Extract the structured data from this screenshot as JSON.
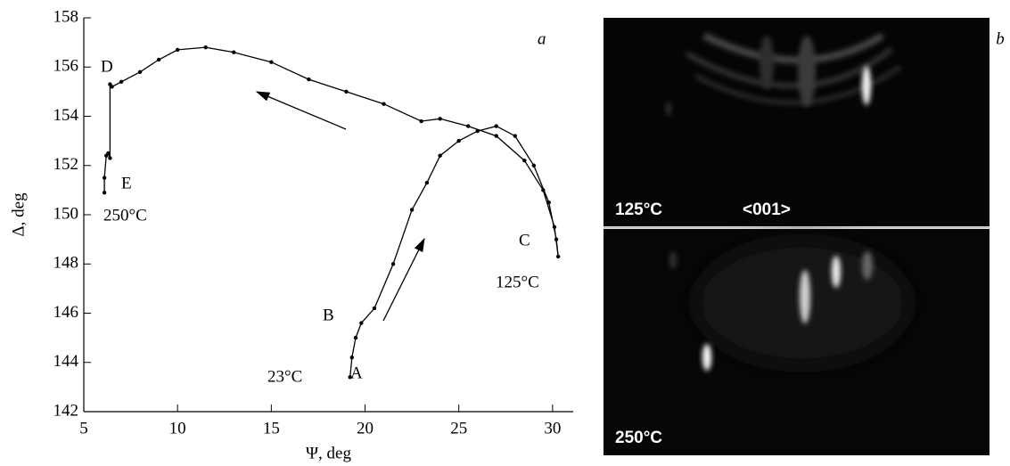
{
  "chart_data": {
    "type": "line",
    "x_label": "Ψ, deg",
    "y_label": "Δ, deg",
    "panel_label": "a",
    "x": [
      19.2,
      19.3,
      19.5,
      19.8,
      20.5,
      21.5,
      22.5,
      23.3,
      24,
      25,
      26,
      27,
      28,
      29,
      29.8,
      30.2,
      30.3,
      30.1,
      29.5,
      28.5,
      27,
      25.5,
      24,
      23,
      21,
      19,
      17,
      15,
      13,
      11.5,
      10,
      9,
      8,
      7,
      6.5,
      6.4,
      6.4,
      6.3,
      6.2,
      6.1,
      6.1
    ],
    "values": [
      143.4,
      144.2,
      145,
      145.6,
      146.2,
      148,
      150.2,
      151.3,
      152.4,
      153,
      153.4,
      153.6,
      153.2,
      152,
      150.5,
      149,
      148.3,
      149.5,
      151,
      152.2,
      153.2,
      153.6,
      153.9,
      153.8,
      154.5,
      155,
      155.5,
      156.2,
      156.6,
      156.8,
      156.7,
      156.3,
      155.8,
      155.4,
      155.2,
      155.3,
      152.3,
      152.5,
      152.4,
      151.5,
      150.9
    ],
    "color": "#000000",
    "xlim": [
      5,
      31.1
    ],
    "ylim": [
      142,
      158
    ],
    "xticks": [
      5,
      10,
      15,
      20,
      25,
      30
    ],
    "yticks": [
      142,
      144,
      146,
      148,
      150,
      152,
      154,
      156,
      158
    ],
    "annotations": [
      "D",
      "E",
      "250°C",
      "C",
      "125°C",
      "B",
      "23°C",
      "A"
    ]
  },
  "rheed": {
    "panel_label": "b",
    "top_label": "125°C",
    "direction": "<001>",
    "bottom_label": "250°C"
  }
}
